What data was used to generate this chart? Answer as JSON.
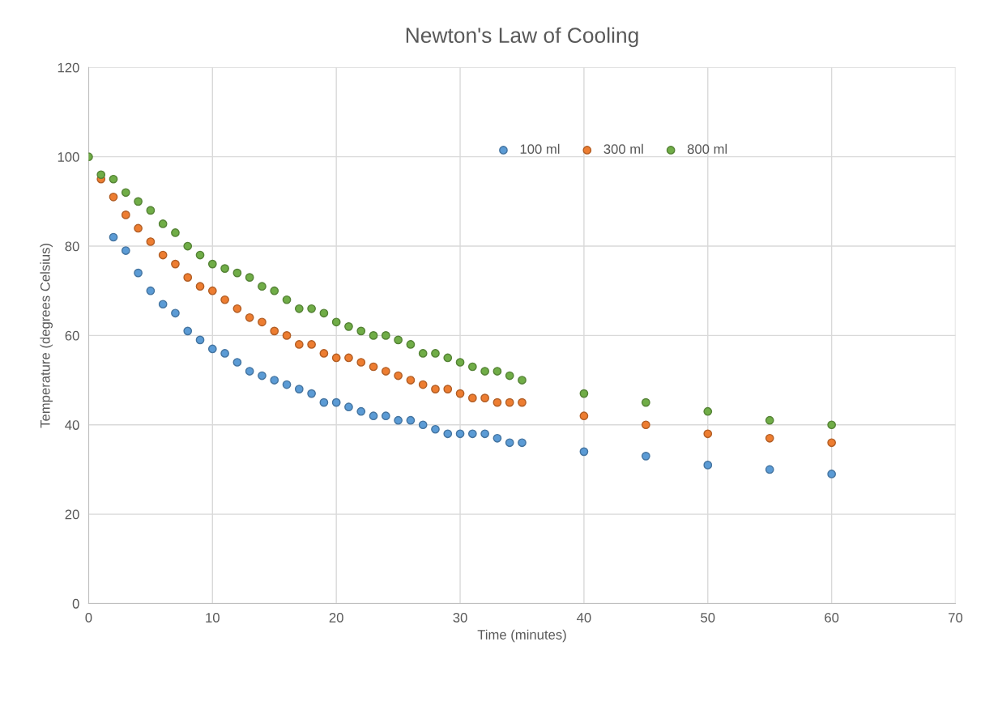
{
  "chart_data": {
    "type": "scatter",
    "title": "Newton's Law of Cooling",
    "xlabel": "Time (minutes)",
    "ylabel": "Temperature (degrees Celsius)",
    "x": [
      0,
      1,
      2,
      3,
      4,
      5,
      6,
      7,
      8,
      9,
      10,
      11,
      12,
      13,
      14,
      15,
      16,
      17,
      18,
      19,
      20,
      21,
      22,
      23,
      24,
      25,
      26,
      27,
      28,
      29,
      30,
      31,
      32,
      33,
      34,
      35,
      40,
      45,
      50,
      55,
      60
    ],
    "series": [
      {
        "name": "100 ml",
        "color": "#5b9bd5",
        "values": [
          null,
          null,
          82,
          79,
          74,
          70,
          67,
          65,
          61,
          59,
          57,
          56,
          54,
          52,
          51,
          50,
          49,
          48,
          47,
          45,
          45,
          44,
          43,
          42,
          42,
          41,
          41,
          40,
          39,
          38,
          38,
          38,
          38,
          37,
          36,
          36,
          34,
          33,
          31,
          30,
          29
        ]
      },
      {
        "name": "300 ml",
        "color": "#ed7d31",
        "values": [
          null,
          95,
          91,
          87,
          84,
          81,
          78,
          76,
          73,
          71,
          70,
          68,
          66,
          64,
          63,
          61,
          60,
          58,
          58,
          56,
          55,
          55,
          54,
          53,
          52,
          51,
          50,
          49,
          48,
          48,
          47,
          46,
          46,
          45,
          45,
          45,
          42,
          40,
          38,
          37,
          36
        ]
      },
      {
        "name": "800 ml",
        "color": "#70ad47",
        "values": [
          100,
          96,
          95,
          92,
          90,
          88,
          85,
          83,
          80,
          78,
          76,
          75,
          74,
          73,
          71,
          70,
          68,
          66,
          66,
          65,
          63,
          62,
          61,
          60,
          60,
          59,
          58,
          56,
          56,
          55,
          54,
          53,
          52,
          52,
          51,
          50,
          47,
          45,
          43,
          41,
          40
        ]
      }
    ],
    "xlim": [
      0,
      70
    ],
    "xticks": [
      0,
      10,
      20,
      30,
      40,
      50,
      60,
      70
    ],
    "ylim": [
      0,
      120
    ],
    "yticks": [
      0,
      20,
      40,
      60,
      80,
      100,
      120
    ],
    "grid": true,
    "legend": "top",
    "marker": "circle"
  }
}
